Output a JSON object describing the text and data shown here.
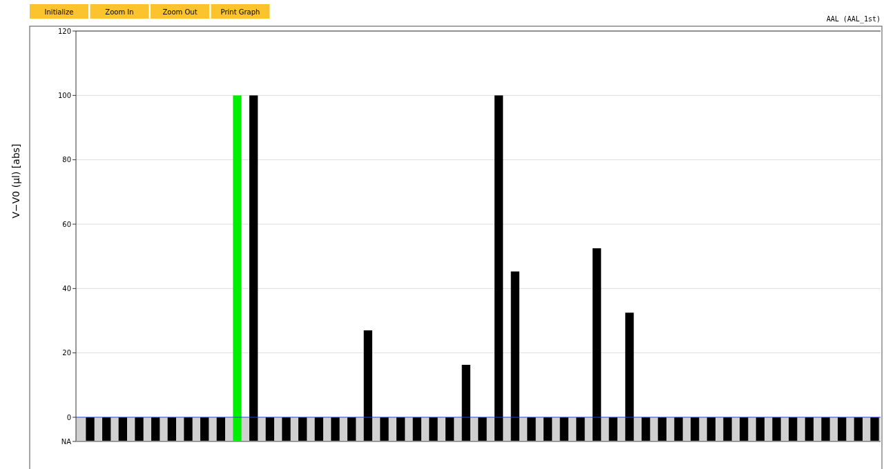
{
  "chart_data": {
    "type": "bar",
    "title": "AAL (AAL_1st)",
    "ylabel": "V−V0 (μl) [abs]",
    "annotations": [
      "Initialize",
      "Zoom In",
      "Zoom Out",
      "Print Graph"
    ],
    "categories": [
      null,
      null,
      null,
      null,
      null,
      null,
      null,
      null,
      null,
      null,
      null,
      null,
      null,
      null,
      null,
      null,
      null,
      null,
      null,
      null,
      null,
      null,
      null,
      null,
      null,
      null,
      null,
      null,
      null,
      null,
      null,
      null,
      null,
      null,
      null,
      null,
      null,
      null,
      null,
      null,
      null,
      null,
      null,
      null,
      null,
      null,
      null,
      null,
      null
    ],
    "series": [
      {
        "values": [
          7.5,
          7.5,
          7.5,
          7.5,
          7.5,
          7.5,
          7.5,
          7.5,
          7.5,
          7.5,
          7.5,
          7.5,
          7.5,
          7.5,
          7.5,
          7.5,
          7.5,
          7.5,
          7.5,
          7.5,
          7.5,
          7.5,
          7.5,
          7.5,
          7.5,
          7.5,
          7.5,
          7.5,
          7.5,
          7.5,
          7.5,
          7.5,
          7.5,
          7.5,
          7.5,
          7.5,
          7.5,
          7.5,
          7.5,
          7.5,
          7.5,
          7.5,
          7.5,
          7.5,
          7.5,
          7.5,
          7.5,
          7.5,
          7.5
        ],
        "base": [
          -7.5,
          -7.5,
          -7.5,
          -7.5,
          -7.5,
          -7.5,
          -7.5,
          -7.5,
          -7.5,
          -7.5,
          -7.5,
          -7.5,
          -7.5,
          -7.5,
          -7.5,
          -7.5,
          -7.5,
          -7.5,
          -7.5,
          -7.5,
          -7.5,
          -7.5,
          -7.5,
          -7.5,
          -7.5,
          -7.5,
          -7.5,
          -7.5,
          -7.5,
          -7.5,
          -7.5,
          -7.5,
          -7.5,
          -7.5,
          -7.5,
          -7.5,
          -7.5,
          -7.5,
          -7.5,
          -7.5,
          -7.5,
          -7.5,
          -7.5,
          -7.5,
          -7.5,
          -7.5,
          -7.5,
          -7.5,
          -7.5
        ],
        "colors": [
          "#000000",
          "#000000",
          "#000000",
          "#000000",
          "#000000",
          "#000000",
          "#000000",
          "#000000",
          "#000000",
          "#00ee00",
          "#000000",
          "#000000",
          "#000000",
          "#000000",
          "#000000",
          "#000000",
          "#000000",
          "#000000",
          "#000000",
          "#000000",
          "#000000",
          "#000000",
          "#000000",
          "#000000",
          "#000000",
          "#000000",
          "#000000",
          "#000000",
          "#000000",
          "#000000",
          "#000000",
          "#000000",
          "#000000",
          "#000000",
          "#000000",
          "#000000",
          "#000000",
          "#000000",
          "#000000",
          "#000000",
          "#000000",
          "#000000",
          "#000000",
          "#000000",
          "#000000",
          "#000000",
          "#000000",
          "#000000",
          "#000000"
        ]
      },
      {
        "values": [
          null,
          null,
          null,
          null,
          null,
          null,
          null,
          null,
          null,
          100,
          100,
          null,
          null,
          null,
          null,
          null,
          null,
          27,
          null,
          null,
          null,
          null,
          null,
          16.3,
          null,
          100,
          45.3,
          null,
          null,
          null,
          null,
          52.5,
          null,
          32.5,
          null,
          null,
          null,
          null,
          null,
          null,
          null,
          null,
          null,
          null,
          null,
          null,
          null,
          null,
          null
        ],
        "colors": [
          null,
          null,
          null,
          null,
          null,
          null,
          null,
          null,
          null,
          "#00ee00",
          "#000000",
          null,
          null,
          null,
          null,
          null,
          null,
          "#000000",
          null,
          null,
          null,
          null,
          null,
          "#000000",
          null,
          "#000000",
          "#000000",
          null,
          null,
          null,
          null,
          "#000000",
          null,
          "#000000",
          null,
          null,
          null,
          null,
          null,
          null,
          null,
          null,
          null,
          null,
          null,
          null,
          null,
          null,
          null
        ]
      }
    ],
    "ylim": [
      -7.5,
      120
    ],
    "yticks": [
      {
        "value": -7.5,
        "label": "NA"
      },
      0,
      20,
      40,
      60,
      80,
      100,
      120
    ],
    "grid": "y",
    "ref_lines": [
      {
        "axis": "y",
        "value": 0,
        "color": "#2040ff"
      }
    ],
    "bands": [
      {
        "axis": "y",
        "from": -7.5,
        "to": 0,
        "color": "#d0d0d0"
      }
    ]
  }
}
